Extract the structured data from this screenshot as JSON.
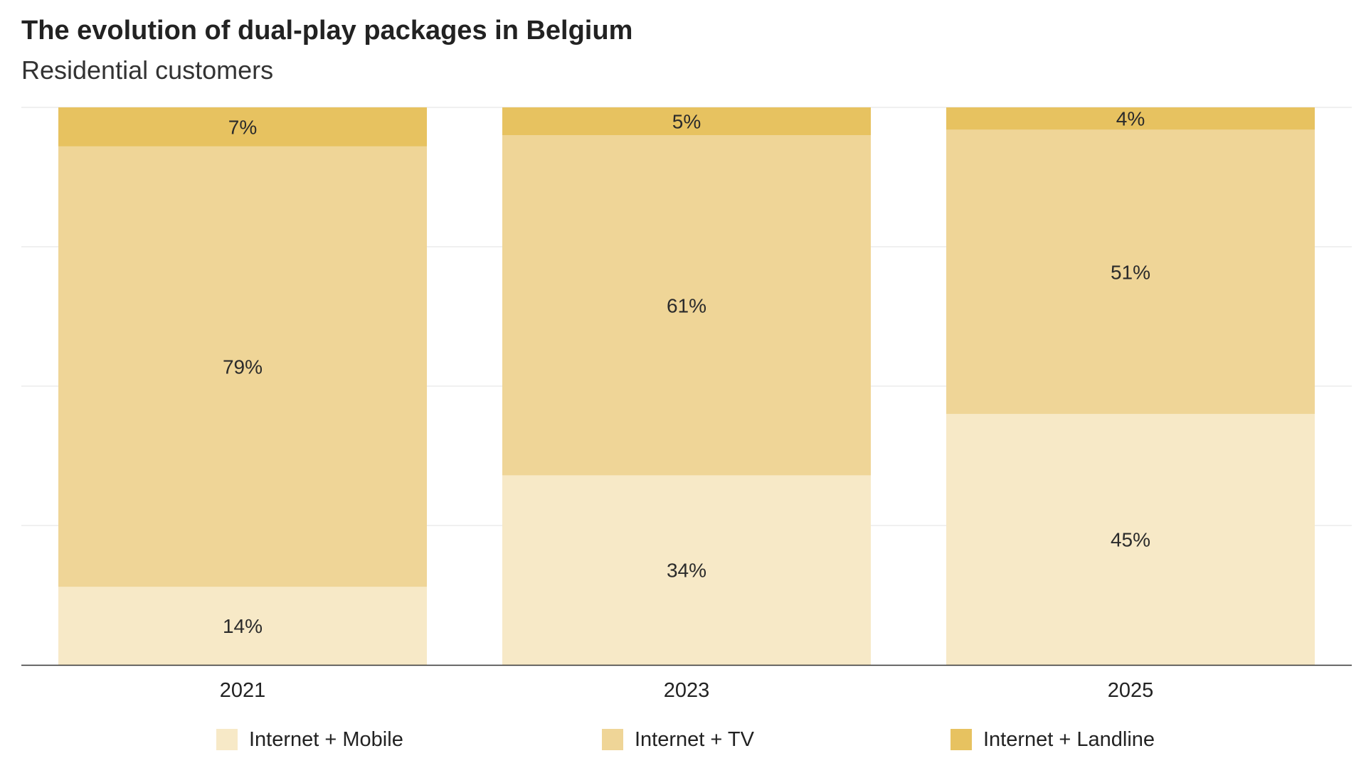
{
  "chart_data": {
    "type": "bar",
    "stacked": true,
    "title": "The evolution of dual-play packages in Belgium",
    "subtitle": "Residential customers",
    "categories": [
      "2021",
      "2023",
      "2025"
    ],
    "series": [
      {
        "name": "Internet + Mobile",
        "values": [
          14,
          34,
          45
        ],
        "labels": [
          "14%",
          "34%",
          "45%"
        ],
        "color": "#f7e9c7"
      },
      {
        "name": "Internet + TV",
        "values": [
          79,
          61,
          51
        ],
        "labels": [
          "79%",
          "61%",
          "51%"
        ],
        "color": "#efd597"
      },
      {
        "name": "Internet + Landline",
        "values": [
          7,
          5,
          4
        ],
        "labels": [
          "7%",
          "5%",
          "4%"
        ],
        "color": "#e7c260"
      }
    ],
    "ylim": [
      0,
      100
    ],
    "grid": true,
    "legend_position": "bottom"
  }
}
